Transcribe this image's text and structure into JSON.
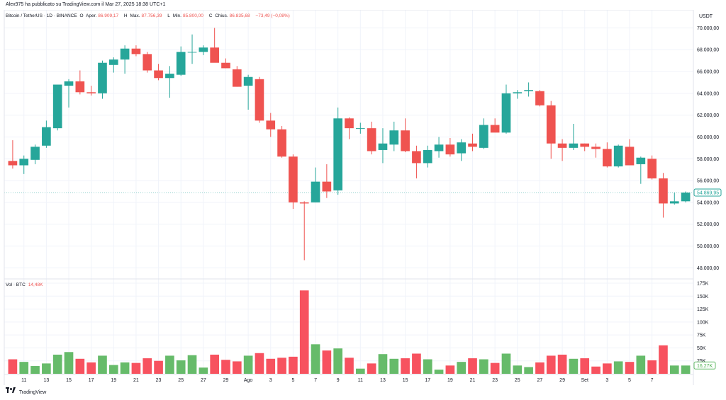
{
  "header": {
    "attribution": "Alex975 ha pubblicato su TradingView.com il Mar 27, 2025 18:38 UTC+1"
  },
  "legend": {
    "symbol": "Bitcoin / TetherUS · 1D · BINANCE",
    "o_label": "O",
    "open_label": "Aper.",
    "open_value": "86.909,17",
    "h_label": "H",
    "high_label": "Max.",
    "high_value": "87.756,39",
    "l_label": "L",
    "low_label": "Min.",
    "low_value": "85.800,00",
    "c_label": "C",
    "close_label": "Chius.",
    "close_value": "86.835,68",
    "change": "−73,49 (−0,08%)"
  },
  "volume_legend": {
    "label": "Vol · BTC",
    "value": "14,48K"
  },
  "price_axis": {
    "unit": "USDT",
    "ticks": [
      "48.000,00",
      "50.000,00",
      "52.000,00",
      "54.000,00",
      "56.000,00",
      "58.000,00",
      "60.000,00",
      "62.000,00",
      "64.000,00",
      "66.000,00",
      "68.000,00",
      "70.000,00"
    ],
    "current_price_label": "54.869,95"
  },
  "volume_axis": {
    "ticks": [
      "25K",
      "50K",
      "75K",
      "100K",
      "125K",
      "150K",
      "175K"
    ],
    "current_volume_label": "16,27K"
  },
  "time_axis": {
    "labels": [
      "11",
      "13",
      "15",
      "17",
      "19",
      "21",
      "23",
      "25",
      "27",
      "29",
      "Ago",
      "3",
      "5",
      "7",
      "9",
      "11",
      "13",
      "15",
      "17",
      "19",
      "21",
      "23",
      "25",
      "27",
      "29",
      "Set",
      "3",
      "5",
      "7"
    ]
  },
  "colors": {
    "up": "#26a69a",
    "down": "#ef5350",
    "vol_up": "#66bb6a",
    "vol_down": "#f7525f"
  },
  "footer": {
    "brand": "TradingView"
  },
  "chart_data": {
    "type": "candlestick",
    "price_range": [
      47500,
      71000
    ],
    "volume_range": [
      0,
      175000
    ],
    "grid": true,
    "candles": [
      {
        "o": 57800,
        "h": 59700,
        "l": 57100,
        "c": 57400,
        "v": 28000
      },
      {
        "o": 57400,
        "h": 58300,
        "l": 56600,
        "c": 58000,
        "v": 23000
      },
      {
        "o": 57900,
        "h": 59300,
        "l": 57500,
        "c": 59100,
        "v": 15000
      },
      {
        "o": 59200,
        "h": 61500,
        "l": 59000,
        "c": 60900,
        "v": 20000
      },
      {
        "o": 60800,
        "h": 64800,
        "l": 60600,
        "c": 64800,
        "v": 37000
      },
      {
        "o": 64700,
        "h": 65300,
        "l": 62700,
        "c": 65100,
        "v": 42000
      },
      {
        "o": 65100,
        "h": 66100,
        "l": 63900,
        "c": 64100,
        "v": 29000
      },
      {
        "o": 64100,
        "h": 64700,
        "l": 63800,
        "c": 64000,
        "v": 22000
      },
      {
        "o": 64000,
        "h": 67000,
        "l": 63500,
        "c": 66800,
        "v": 35000
      },
      {
        "o": 66600,
        "h": 67300,
        "l": 65900,
        "c": 67100,
        "v": 17000
      },
      {
        "o": 67100,
        "h": 68400,
        "l": 65800,
        "c": 68100,
        "v": 22000
      },
      {
        "o": 68100,
        "h": 68400,
        "l": 67400,
        "c": 67600,
        "v": 21000
      },
      {
        "o": 67600,
        "h": 67800,
        "l": 65900,
        "c": 66100,
        "v": 30000
      },
      {
        "o": 66100,
        "h": 66700,
        "l": 65200,
        "c": 65400,
        "v": 25000
      },
      {
        "o": 65400,
        "h": 66500,
        "l": 63600,
        "c": 65800,
        "v": 35000
      },
      {
        "o": 65700,
        "h": 68300,
        "l": 65600,
        "c": 67800,
        "v": 26000
      },
      {
        "o": 67800,
        "h": 69400,
        "l": 66700,
        "c": 67800,
        "v": 36000
      },
      {
        "o": 67800,
        "h": 68400,
        "l": 67500,
        "c": 68200,
        "v": 12000
      },
      {
        "o": 68200,
        "h": 70000,
        "l": 66900,
        "c": 66800,
        "v": 37000
      },
      {
        "o": 66800,
        "h": 67200,
        "l": 66300,
        "c": 66300,
        "v": 27000
      },
      {
        "o": 66200,
        "h": 66500,
        "l": 64600,
        "c": 64600,
        "v": 24000
      },
      {
        "o": 64700,
        "h": 65700,
        "l": 62500,
        "c": 65500,
        "v": 35000
      },
      {
        "o": 65300,
        "h": 65500,
        "l": 61300,
        "c": 61500,
        "v": 40000
      },
      {
        "o": 61500,
        "h": 62200,
        "l": 60000,
        "c": 60700,
        "v": 29000
      },
      {
        "o": 60700,
        "h": 61000,
        "l": 58100,
        "c": 58200,
        "v": 31000
      },
      {
        "o": 58200,
        "h": 58400,
        "l": 53400,
        "c": 54000,
        "v": 33000
      },
      {
        "o": 54000,
        "h": 54100,
        "l": 48700,
        "c": 53900,
        "v": 161000
      },
      {
        "o": 54000,
        "h": 57200,
        "l": 54000,
        "c": 55900,
        "v": 57000
      },
      {
        "o": 55900,
        "h": 57500,
        "l": 54400,
        "c": 55000,
        "v": 45000
      },
      {
        "o": 55100,
        "h": 62700,
        "l": 54700,
        "c": 61700,
        "v": 49000
      },
      {
        "o": 61700,
        "h": 61800,
        "l": 59800,
        "c": 60800,
        "v": 31000
      },
      {
        "o": 60800,
        "h": 61300,
        "l": 60300,
        "c": 60800,
        "v": 10000
      },
      {
        "o": 60800,
        "h": 61400,
        "l": 58400,
        "c": 58700,
        "v": 20000
      },
      {
        "o": 58800,
        "h": 60800,
        "l": 57600,
        "c": 59400,
        "v": 38000
      },
      {
        "o": 59300,
        "h": 61400,
        "l": 58700,
        "c": 60600,
        "v": 29000
      },
      {
        "o": 60600,
        "h": 61700,
        "l": 58600,
        "c": 58700,
        "v": 30000
      },
      {
        "o": 58700,
        "h": 59200,
        "l": 56200,
        "c": 57600,
        "v": 39000
      },
      {
        "o": 57600,
        "h": 59200,
        "l": 57200,
        "c": 58800,
        "v": 28000
      },
      {
        "o": 58700,
        "h": 60000,
        "l": 58100,
        "c": 59300,
        "v": 8000
      },
      {
        "o": 59300,
        "h": 59900,
        "l": 58200,
        "c": 58400,
        "v": 16000
      },
      {
        "o": 58500,
        "h": 59800,
        "l": 57800,
        "c": 59500,
        "v": 23000
      },
      {
        "o": 59400,
        "h": 60300,
        "l": 58700,
        "c": 59100,
        "v": 30000
      },
      {
        "o": 59000,
        "h": 61700,
        "l": 58900,
        "c": 61100,
        "v": 28000
      },
      {
        "o": 61100,
        "h": 61700,
        "l": 60600,
        "c": 60400,
        "v": 21000
      },
      {
        "o": 60400,
        "h": 64800,
        "l": 60300,
        "c": 64000,
        "v": 39000
      },
      {
        "o": 64000,
        "h": 64300,
        "l": 63500,
        "c": 64100,
        "v": 16000
      },
      {
        "o": 64200,
        "h": 65000,
        "l": 63700,
        "c": 64300,
        "v": 13000
      },
      {
        "o": 64200,
        "h": 64300,
        "l": 62800,
        "c": 62900,
        "v": 22000
      },
      {
        "o": 62900,
        "h": 63300,
        "l": 58000,
        "c": 59400,
        "v": 35000
      },
      {
        "o": 59400,
        "h": 59800,
        "l": 57800,
        "c": 59000,
        "v": 37000
      },
      {
        "o": 59000,
        "h": 61200,
        "l": 58800,
        "c": 59400,
        "v": 29000
      },
      {
        "o": 59400,
        "h": 59400,
        "l": 58700,
        "c": 59100,
        "v": 30000
      },
      {
        "o": 59100,
        "h": 59400,
        "l": 58100,
        "c": 58900,
        "v": 14000
      },
      {
        "o": 58900,
        "h": 59500,
        "l": 57200,
        "c": 57300,
        "v": 20000
      },
      {
        "o": 57300,
        "h": 59300,
        "l": 57200,
        "c": 59200,
        "v": 24000
      },
      {
        "o": 59100,
        "h": 59800,
        "l": 57400,
        "c": 57400,
        "v": 23000
      },
      {
        "o": 57500,
        "h": 58200,
        "l": 55700,
        "c": 58100,
        "v": 35000
      },
      {
        "o": 58000,
        "h": 58300,
        "l": 56100,
        "c": 56200,
        "v": 26000
      },
      {
        "o": 56200,
        "h": 56700,
        "l": 52600,
        "c": 53900,
        "v": 55000
      },
      {
        "o": 53900,
        "h": 54900,
        "l": 53800,
        "c": 54100,
        "v": 16000
      },
      {
        "o": 54100,
        "h": 55000,
        "l": 54000,
        "c": 54900,
        "v": 16000
      }
    ]
  }
}
